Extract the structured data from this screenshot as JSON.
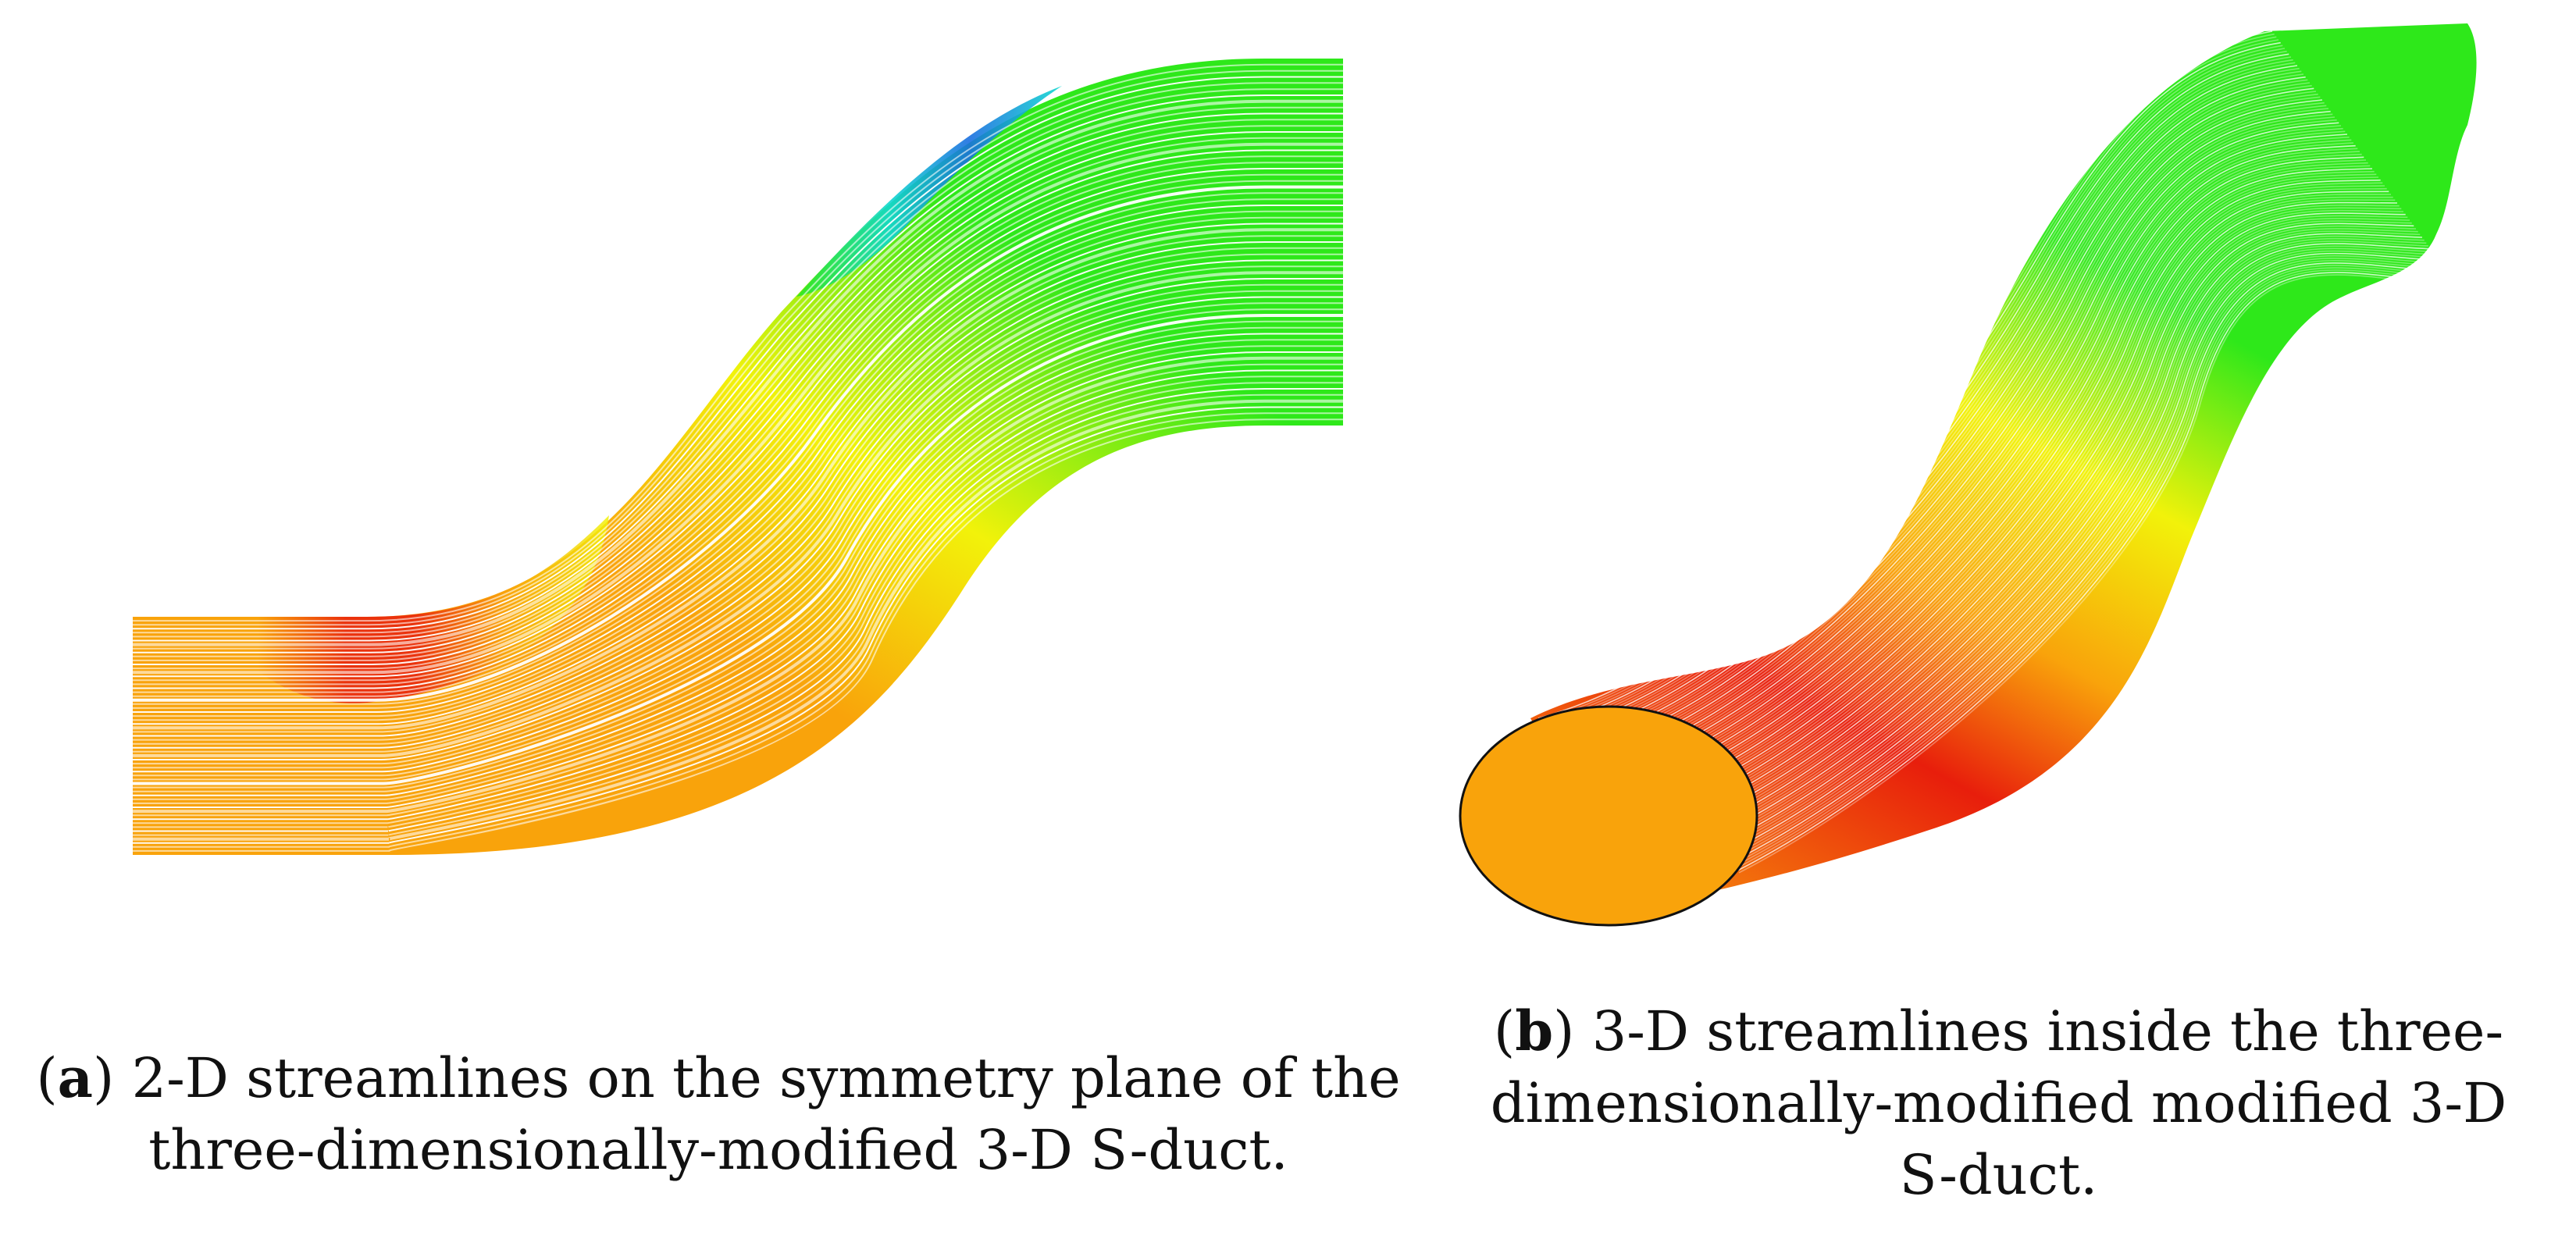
{
  "panels": [
    {
      "letter": "a",
      "caption_lines": [
        "2-D streamlines on the symmetry plane of the",
        "three-dimensionally-modified 3-D S-duct."
      ],
      "streamline_count": 60
    },
    {
      "letter": "b",
      "caption_lines": [
        "3-D streamlines inside the three-",
        "dimensionally-modified modified 3-D",
        "S-duct."
      ],
      "streamline_count": 90
    }
  ],
  "colors": {
    "red": "#e81e0c",
    "orange": "#f9a30b",
    "yellow": "#f2f20a",
    "green": "#2ee81a",
    "cyan": "#10d8d0",
    "blue": "#1a6fe0",
    "outline": "#111111"
  }
}
